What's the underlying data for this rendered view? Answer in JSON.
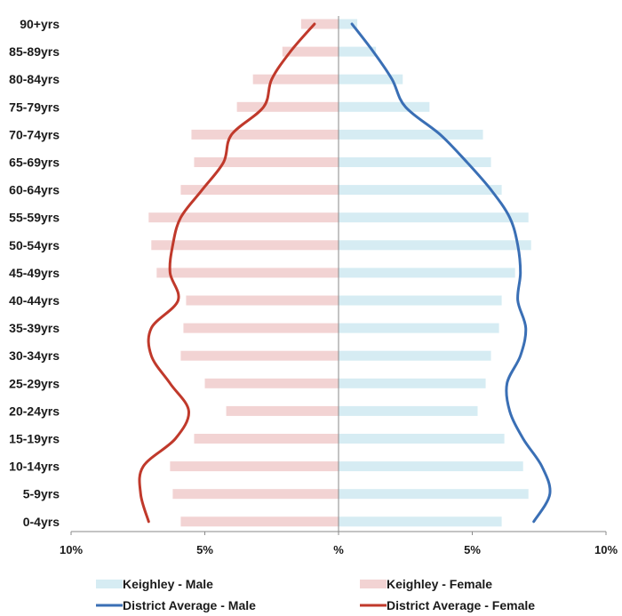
{
  "chart_data": {
    "type": "bar",
    "orientation": "horizontal",
    "layout": "population-pyramid",
    "categories": [
      "90+yrs",
      "85-89yrs",
      "80-84yrs",
      "75-79yrs",
      "70-74yrs",
      "65-69yrs",
      "60-64yrs",
      "55-59yrs",
      "50-54yrs",
      "45-49yrs",
      "40-44yrs",
      "35-39yrs",
      "30-34yrs",
      "25-29yrs",
      "20-24yrs",
      "15-19yrs",
      "10-14yrs",
      "5-9yrs",
      "0-4yrs"
    ],
    "x_ticks": [
      "10%",
      "5%",
      "%",
      "5%",
      "10%"
    ],
    "xlim": [
      -10,
      10
    ],
    "grid": false,
    "legend_position": "bottom",
    "series": [
      {
        "name": "Keighley - Male",
        "kind": "bar",
        "side": "right",
        "color": "#d6ecf3",
        "values": [
          0.7,
          1.4,
          2.4,
          3.4,
          5.4,
          5.7,
          6.1,
          7.1,
          7.2,
          6.6,
          6.1,
          6.0,
          5.7,
          5.5,
          5.2,
          6.2,
          6.9,
          7.1,
          6.1
        ]
      },
      {
        "name": "Keighley - Female",
        "kind": "bar",
        "side": "left",
        "color": "#f2d3d3",
        "values": [
          1.4,
          2.1,
          3.2,
          3.8,
          5.5,
          5.4,
          5.9,
          7.1,
          7.0,
          6.8,
          5.7,
          5.8,
          5.9,
          5.0,
          4.2,
          5.4,
          6.3,
          6.2,
          5.9
        ]
      },
      {
        "name": "District Average - Male",
        "kind": "line",
        "side": "right",
        "color": "#3a6fb5",
        "values": [
          0.5,
          1.3,
          2.0,
          2.5,
          3.8,
          4.8,
          5.7,
          6.4,
          6.7,
          6.8,
          6.7,
          7.0,
          6.8,
          6.3,
          6.4,
          6.9,
          7.6,
          7.9,
          7.3
        ]
      },
      {
        "name": "District Average - Female",
        "kind": "line",
        "side": "left",
        "color": "#c0392b",
        "values": [
          0.9,
          1.8,
          2.5,
          2.8,
          4.0,
          4.3,
          5.1,
          5.9,
          6.2,
          6.3,
          6.0,
          7.0,
          7.0,
          6.3,
          5.6,
          6.1,
          7.3,
          7.4,
          7.1
        ]
      }
    ]
  }
}
